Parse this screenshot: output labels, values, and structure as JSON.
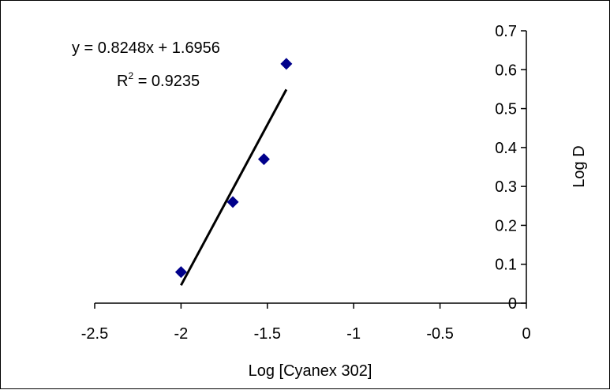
{
  "chart_data": {
    "type": "scatter",
    "xlabel": "Log [Cyanex 302]",
    "ylabel": "Log D",
    "xlim": [
      -2.5,
      0
    ],
    "ylim": [
      0,
      0.7
    ],
    "x_ticks": [
      "-2.5",
      "-2",
      "-1.5",
      "-1",
      "-0.5",
      "0"
    ],
    "y_ticks": [
      "0",
      "0.1",
      "0.2",
      "0.3",
      "0.4",
      "0.5",
      "0.6",
      "0.7"
    ],
    "points": [
      {
        "x": -2.0,
        "y": 0.08
      },
      {
        "x": -1.7,
        "y": 0.26
      },
      {
        "x": -1.52,
        "y": 0.37
      },
      {
        "x": -1.39,
        "y": 0.615
      }
    ],
    "trendline": {
      "slope": 0.8248,
      "intercept": 1.6956,
      "x_range": [
        -2.0,
        -1.39
      ]
    },
    "equation": "y = 0.8248x + 1.6956",
    "r_squared_label": "R",
    "r_squared_exp": "2",
    "r_squared_value": " = 0.9235",
    "grid": false,
    "legend": "none",
    "marker_color": "#00008B",
    "line_color": "#000000"
  }
}
